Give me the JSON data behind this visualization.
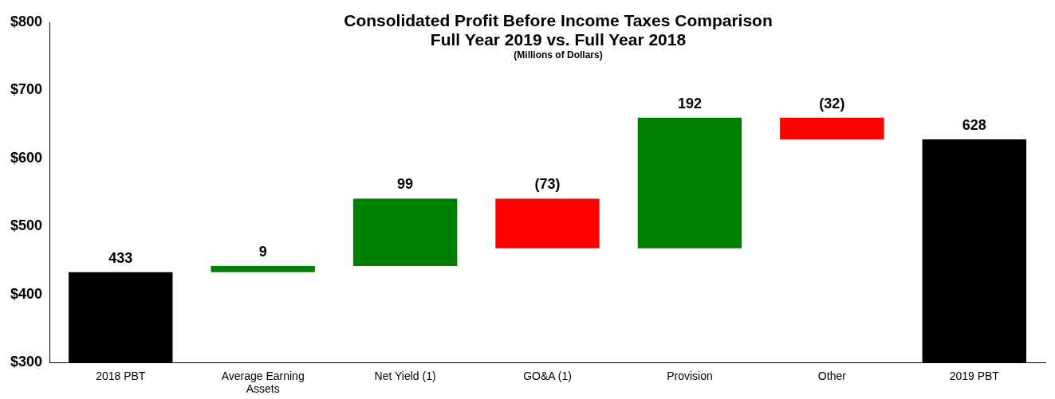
{
  "chart_data": {
    "type": "bar",
    "title": "Consolidated Profit Before Income Taxes Comparison",
    "subtitle": "Full Year 2019 vs. Full Year 2018",
    "annotations": [
      "(Millions of Dollars)"
    ],
    "categories": [
      "2018 PBT",
      "Average Earning Assets",
      "Net Yield (1)",
      "GO&A (1)",
      "Provision",
      "Other",
      "2019 PBT"
    ],
    "values": [
      433,
      9,
      99,
      -73,
      192,
      -32,
      628
    ],
    "base": [
      null,
      433,
      442,
      541,
      468,
      660,
      null
    ],
    "colors": [
      "#000000",
      "#008000",
      "#008000",
      "#ff0000",
      "#008000",
      "#ff0000",
      "#000000"
    ],
    "value_labels": [
      "433",
      "9",
      "99",
      "(73)",
      "192",
      "(32)",
      "628"
    ],
    "ylim": [
      300,
      800
    ],
    "yticks": [
      {
        "value": 300,
        "label": "$300"
      },
      {
        "value": 400,
        "label": "$400"
      },
      {
        "value": 500,
        "label": "$500"
      },
      {
        "value": 600,
        "label": "$600"
      },
      {
        "value": 700,
        "label": "$700"
      },
      {
        "value": 800,
        "label": "$800"
      }
    ],
    "grid": false,
    "legend": false
  }
}
